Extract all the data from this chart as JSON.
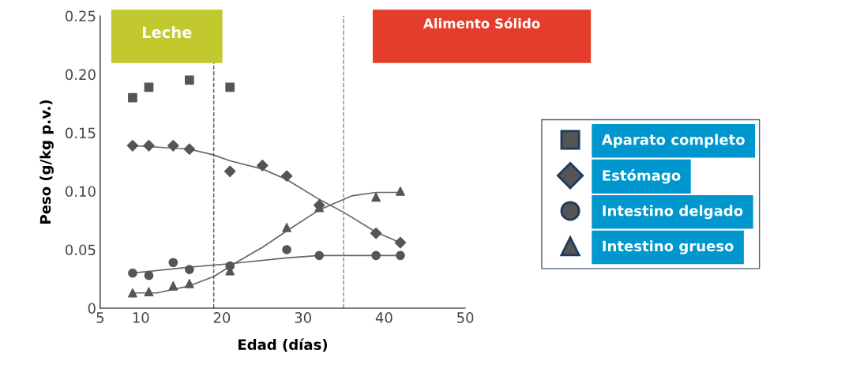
{
  "chart_data": {
    "type": "scatter",
    "xlabel": "Edad (días)",
    "ylabel": "Peso (g/kg p.v.)",
    "xlim": [
      5,
      50
    ],
    "xticks": [
      5,
      10,
      20,
      30,
      40,
      50
    ],
    "ylim": [
      0,
      0.25
    ],
    "yticks": [
      {
        "value": 0,
        "label": "0"
      },
      0.05,
      {
        "value": 0.1,
        "label": "0.10"
      },
      0.15,
      {
        "value": 0.2,
        "label": "0.20"
      },
      0.25
    ],
    "grid": false,
    "legend": "right",
    "annotations": [
      "Leche",
      "Alimento Sólido"
    ],
    "ref_lines": [
      {
        "axis": "x",
        "value": 19,
        "color": "#555555",
        "line_style": "dashed"
      },
      {
        "axis": "x",
        "value": 35,
        "color": "#888888",
        "line_style": "dashed"
      }
    ],
    "series": [
      {
        "name": "Aparato completo",
        "marker": "square",
        "color": "#555555",
        "x": [
          9,
          11,
          16,
          21
        ],
        "values": [
          0.18,
          0.189,
          0.195,
          0.189
        ]
      },
      {
        "name": "Estómago",
        "marker": "diamond",
        "color": "#555555",
        "x": [
          9,
          11,
          14,
          16,
          21,
          25,
          28,
          32,
          39,
          42
        ],
        "values": [
          0.139,
          0.139,
          0.139,
          0.136,
          0.117,
          0.122,
          0.113,
          0.088,
          0.064,
          0.056
        ]
      },
      {
        "name": "Intestino delgado",
        "marker": "circle",
        "color": "#555555",
        "x": [
          9,
          11,
          14,
          16,
          21,
          28,
          32,
          39,
          42
        ],
        "values": [
          0.03,
          0.028,
          0.039,
          0.033,
          0.036,
          0.05,
          0.045,
          0.045,
          0.045
        ]
      },
      {
        "name": "Intestino grueso",
        "marker": "triangle",
        "color": "#555555",
        "x": [
          9,
          11,
          14,
          16,
          21,
          28,
          32,
          39,
          42
        ],
        "values": [
          0.013,
          0.014,
          0.019,
          0.021,
          0.032,
          0.069,
          0.086,
          0.095,
          0.1
        ]
      },
      {
        "type": "line",
        "marker": "none",
        "color": "#666666",
        "x": [
          9,
          16,
          19,
          21,
          25,
          28,
          32,
          35,
          39,
          42
        ],
        "values": [
          0.139,
          0.136,
          0.131,
          0.126,
          0.119,
          0.11,
          0.093,
          0.082,
          0.065,
          0.056
        ]
      },
      {
        "type": "line",
        "marker": "none",
        "color": "#666666",
        "x": [
          9,
          16,
          21,
          28,
          32,
          42
        ],
        "values": [
          0.03,
          0.035,
          0.038,
          0.043,
          0.045,
          0.045
        ]
      },
      {
        "type": "line",
        "marker": "none",
        "color": "#666666",
        "x": [
          9,
          12,
          16,
          19,
          22,
          25,
          28,
          32,
          36,
          39,
          42
        ],
        "values": [
          0.013,
          0.013,
          0.019,
          0.027,
          0.04,
          0.052,
          0.066,
          0.084,
          0.096,
          0.099,
          0.099
        ]
      }
    ]
  }
}
